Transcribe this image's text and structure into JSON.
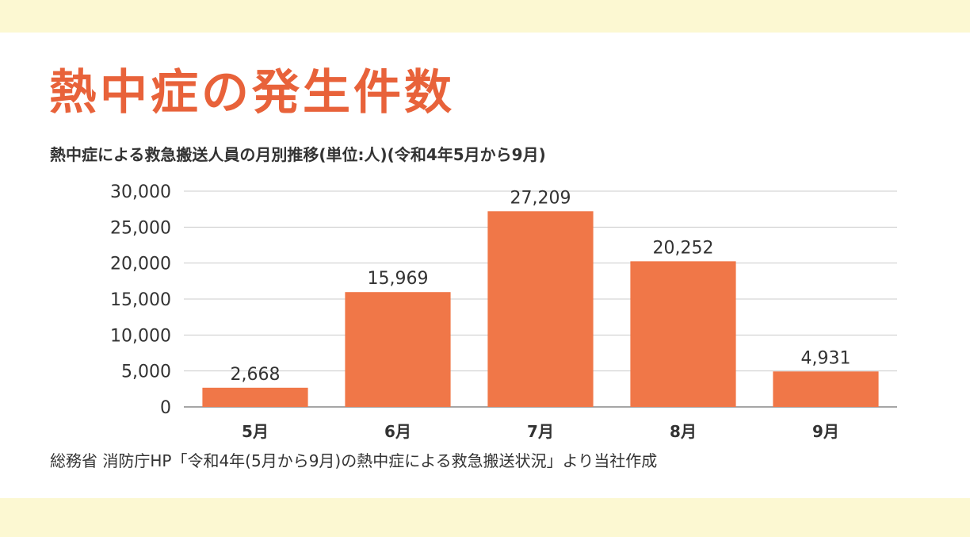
{
  "title": "熱中症の発生件数",
  "subtitle": "熱中症による救急搬送人員の月別推移(単位:人)(令和4年5月から9月)",
  "source": "総務省 消防庁HP「令和4年(5月から9月)の熱中症による救急搬送状況」より当社作成",
  "colors": {
    "bar": "#f07748",
    "title": "#e8623a",
    "page_band": "#fcf8d2",
    "grid": "#cccccc"
  },
  "chart_data": {
    "type": "bar",
    "categories": [
      "5月",
      "6月",
      "7月",
      "8月",
      "9月"
    ],
    "values": [
      2668,
      15969,
      27209,
      20252,
      4931
    ],
    "data_labels": [
      "2,668",
      "15,969",
      "27,209",
      "20,252",
      "4,931"
    ],
    "ylim": [
      0,
      30000
    ],
    "yticks": [
      0,
      5000,
      10000,
      15000,
      20000,
      25000,
      30000
    ],
    "ytick_labels": [
      "0",
      "5,000",
      "10,000",
      "15,000",
      "20,000",
      "25,000",
      "30,000"
    ],
    "grid": true,
    "xlabel": "",
    "ylabel": ""
  }
}
